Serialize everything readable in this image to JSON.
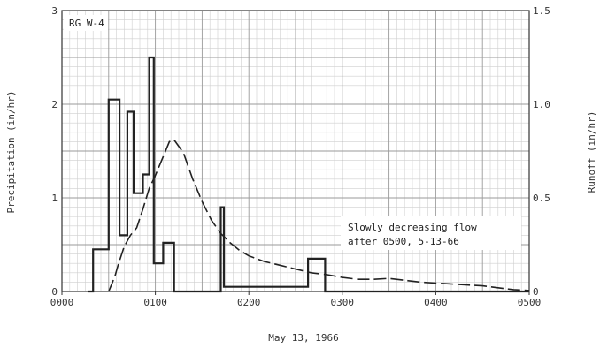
{
  "chart_data": {
    "type": "line",
    "title": "",
    "xlabel": "May 13, 1966",
    "ylabel": "Precipitation  (in/hr)",
    "y2label": "Runoff  (in/hr)",
    "xlim": [
      0,
      300
    ],
    "ylim": [
      0,
      3
    ],
    "y2lim": [
      0,
      1.5
    ],
    "x_tick_values": [
      0,
      60,
      120,
      180,
      240,
      300
    ],
    "x_tick_labels": [
      "0000",
      "0100",
      "0200",
      "0300",
      "0400",
      "0500"
    ],
    "y_ticks": [
      0,
      1,
      2,
      3
    ],
    "y2_ticks": [
      0,
      0.5,
      1.0,
      1.5
    ],
    "y2_tick_labels": [
      "0",
      "0.5",
      "1.0",
      "1.5"
    ],
    "grid": true,
    "legend": "none",
    "gauge_label": "RG W-4",
    "annotation_lines": [
      "Slowly decreasing flow",
      "after 0500, 5-13-66"
    ],
    "series": [
      {
        "name": "",
        "style": "step",
        "axis": "left",
        "x": [
          17,
          20,
          20,
          30,
          30,
          37,
          37,
          42,
          42,
          46,
          46,
          52,
          52,
          56,
          56,
          59,
          59,
          65,
          65,
          72,
          72,
          102,
          102,
          104,
          104,
          158,
          158,
          169,
          169,
          300
        ],
        "values": [
          0,
          0,
          0.45,
          0.45,
          2.05,
          2.05,
          0.6,
          0.6,
          1.92,
          1.92,
          1.05,
          1.05,
          1.25,
          1.25,
          2.5,
          2.5,
          0.3,
          0.3,
          0.52,
          0.52,
          0,
          0,
          0.9,
          0.9,
          0.05,
          0.05,
          0.35,
          0.35,
          0,
          0
        ]
      },
      {
        "name": "",
        "style": "dashed",
        "axis": "right",
        "x": [
          30,
          34,
          36,
          40,
          44,
          48,
          52,
          56,
          60,
          63,
          66,
          69,
          72,
          78,
          84,
          90,
          96,
          102,
          108,
          114,
          120,
          130,
          140,
          150,
          160,
          170,
          180,
          190,
          200,
          210,
          220,
          230,
          240,
          250,
          260,
          270,
          280,
          290,
          300
        ],
        "values": [
          0,
          0.08,
          0.14,
          0.24,
          0.3,
          0.34,
          0.44,
          0.55,
          0.62,
          0.68,
          0.74,
          0.8,
          0.81,
          0.74,
          0.6,
          0.48,
          0.38,
          0.31,
          0.26,
          0.22,
          0.19,
          0.16,
          0.14,
          0.12,
          0.1,
          0.09,
          0.075,
          0.065,
          0.065,
          0.07,
          0.06,
          0.05,
          0.045,
          0.04,
          0.035,
          0.03,
          0.02,
          0.01,
          0.005
        ]
      }
    ]
  }
}
